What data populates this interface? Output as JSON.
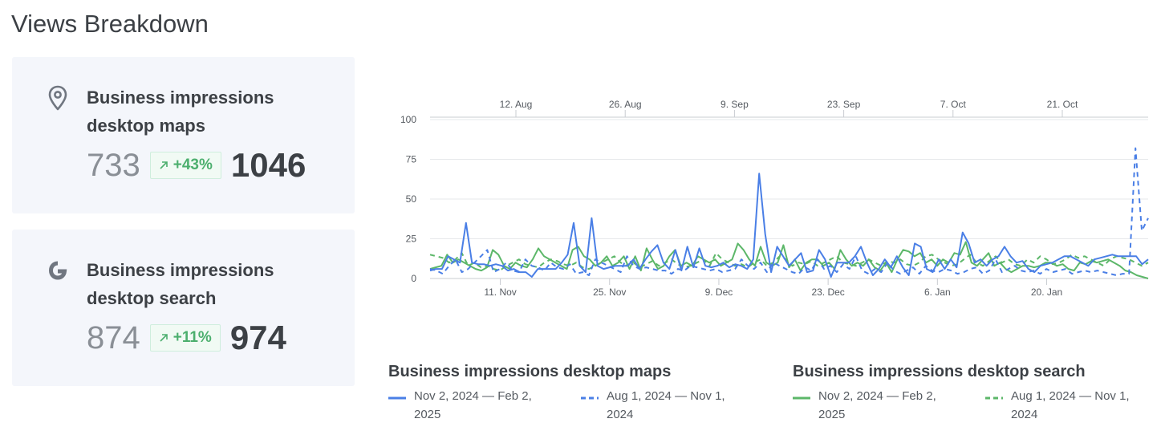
{
  "page": {
    "title": "Views Breakdown"
  },
  "cards": [
    {
      "icon": "map-pin-icon",
      "title": "Business impressions desktop maps",
      "previous": "733",
      "change": "+43%",
      "current": "1046"
    },
    {
      "icon": "google-g-icon",
      "title": "Business impressions desktop search",
      "previous": "874",
      "change": "+11%",
      "current": "974"
    }
  ],
  "colors": {
    "maps": "#4a7fe6",
    "search": "#5cb769",
    "badge_text": "#4caf6e"
  },
  "chart_data": {
    "type": "line",
    "ylim": [
      0,
      100
    ],
    "yticks": [
      0,
      25,
      50,
      75,
      100
    ],
    "x_current_period": [
      "2024-11-02",
      "2025-02-02"
    ],
    "x_previous_period": [
      "2024-08-01",
      "2024-11-01"
    ],
    "xticks_current": [
      "11. Nov",
      "25. Nov",
      "9. Dec",
      "23. Dec",
      "6. Jan",
      "20. Jan"
    ],
    "xticks_previous": [
      "12. Aug",
      "26. Aug",
      "9. Sep",
      "23. Sep",
      "7. Oct",
      "21. Oct"
    ],
    "legend": [
      {
        "title": "Business impressions desktop maps",
        "items": [
          {
            "label": "Nov 2, 2024 — Feb 2, 2025",
            "style": "solid"
          },
          {
            "label": "Aug 1, 2024 — Nov 1, 2024",
            "style": "dashed"
          }
        ]
      },
      {
        "title": "Business impressions desktop search",
        "items": [
          {
            "label": "Nov 2, 2024 — Feb 2, 2025",
            "style": "solid"
          },
          {
            "label": "Aug 1, 2024 — Nov 1, 2024",
            "style": "dashed"
          }
        ]
      }
    ],
    "series": [
      {
        "name": "Business impressions desktop maps",
        "period": "Nov 2, 2024 — Feb 2, 2025",
        "style": "solid",
        "color": "#4a7fe6",
        "values": [
          5,
          6,
          6,
          14,
          12,
          10,
          35,
          10,
          9,
          9,
          8,
          9,
          8,
          5,
          6,
          4,
          4,
          1,
          6,
          6,
          6,
          6,
          10,
          15,
          35,
          8,
          4,
          38,
          8,
          6,
          7,
          8,
          8,
          8,
          12,
          6,
          12,
          17,
          21,
          10,
          6,
          18,
          5,
          20,
          7,
          19,
          8,
          7,
          8,
          10,
          7,
          9,
          8,
          6,
          12,
          66,
          28,
          4,
          20,
          14,
          8,
          12,
          16,
          4,
          5,
          18,
          12,
          1,
          10,
          10,
          10,
          14,
          20,
          10,
          2,
          6,
          12,
          7,
          14,
          7,
          2,
          22,
          20,
          6,
          4,
          12,
          6,
          12,
          7,
          29,
          22,
          10,
          12,
          8,
          12,
          14,
          20,
          14,
          10,
          11,
          6,
          4,
          8,
          9,
          10,
          12,
          14,
          14,
          12,
          10,
          8,
          12,
          13,
          14,
          15,
          14,
          14,
          14,
          14,
          9,
          12
        ]
      },
      {
        "name": "Business impressions desktop maps",
        "period": "Aug 1, 2024 — Nov 1, 2024",
        "style": "dashed",
        "color": "#4a7fe6",
        "values": [
          6,
          5,
          3,
          8,
          12,
          4,
          6,
          10,
          14,
          18,
          4,
          6,
          10,
          5,
          4,
          12,
          8,
          7,
          5,
          10,
          7,
          6,
          9,
          3,
          4,
          2,
          12,
          10,
          8,
          6,
          4,
          14,
          8,
          6,
          7,
          6,
          5,
          5,
          3,
          6,
          5,
          8,
          7,
          6,
          5,
          6,
          4,
          5,
          6,
          12,
          8,
          6,
          10,
          4,
          10,
          8,
          6,
          4,
          3,
          7,
          5,
          12,
          6,
          8,
          4,
          9,
          6,
          14,
          5,
          3,
          6,
          4,
          10,
          5,
          3,
          5,
          7,
          3,
          8,
          5,
          4,
          6,
          5,
          3,
          4,
          6,
          7,
          3,
          5,
          12,
          4,
          6,
          8,
          5,
          4,
          5,
          3,
          6,
          4,
          5,
          6,
          3,
          4,
          5,
          4,
          5,
          4,
          3,
          2,
          3,
          3,
          82,
          30,
          38
        ]
      },
      {
        "name": "Business impressions desktop search",
        "period": "Nov 2, 2024 — Feb 2, 2025",
        "style": "solid",
        "color": "#5cb769",
        "values": [
          6,
          7,
          8,
          15,
          10,
          12,
          10,
          8,
          6,
          5,
          7,
          18,
          15,
          8,
          6,
          10,
          8,
          7,
          12,
          19,
          14,
          12,
          10,
          8,
          6,
          18,
          20,
          14,
          12,
          8,
          10,
          14,
          8,
          10,
          14,
          6,
          14,
          5,
          19,
          12,
          6,
          8,
          14,
          18,
          8,
          10,
          8,
          14,
          12,
          10,
          12,
          8,
          10,
          12,
          22,
          18,
          12,
          8,
          20,
          10,
          8,
          10,
          21,
          7,
          12,
          5,
          10,
          12,
          12,
          8,
          10,
          6,
          18,
          12,
          8,
          10,
          8,
          12,
          7,
          5,
          10,
          4,
          12,
          18,
          17,
          14,
          16,
          10,
          12,
          8,
          12,
          10,
          16,
          15,
          23,
          10,
          8,
          12,
          16,
          8,
          10,
          6,
          4,
          6,
          8,
          8,
          7,
          8,
          10,
          10,
          8,
          9,
          6,
          5,
          10,
          9,
          11,
          10,
          11,
          12,
          10,
          8,
          5,
          4,
          2,
          1,
          0
        ]
      },
      {
        "name": "Business impressions desktop search",
        "period": "Aug 1, 2024 — Nov 1, 2024",
        "style": "dashed",
        "color": "#5cb769",
        "values": [
          15,
          14,
          13,
          10,
          12,
          16,
          8,
          10,
          7,
          8,
          6,
          5,
          8,
          10,
          12,
          9,
          8,
          7,
          10,
          12,
          11,
          9,
          8,
          10,
          7,
          6,
          8,
          10,
          12,
          14,
          10,
          8,
          10,
          7,
          9,
          11,
          8,
          10,
          12,
          9,
          7,
          8,
          10,
          12,
          8,
          16,
          12,
          10,
          8,
          9,
          7,
          10,
          12,
          8,
          10,
          14,
          12,
          8,
          10,
          9,
          11,
          8,
          10,
          12,
          14,
          10,
          9,
          8,
          10,
          12,
          10,
          8,
          11,
          10,
          12,
          9,
          8,
          10,
          14,
          15,
          12,
          10,
          8,
          9,
          12,
          15,
          10,
          8,
          11,
          14,
          10,
          12,
          9,
          8,
          12,
          10,
          14,
          12,
          9,
          10,
          12,
          15,
          13,
          14,
          12,
          10,
          8,
          12,
          14,
          13,
          12,
          10,
          8,
          10
        ]
      }
    ]
  }
}
